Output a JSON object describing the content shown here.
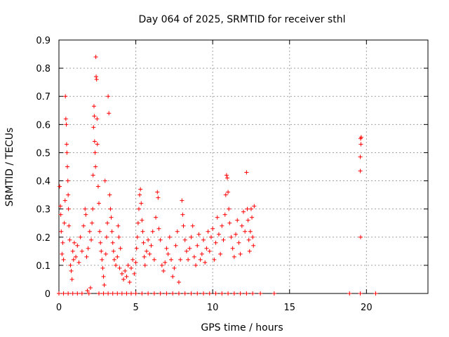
{
  "chart_data": {
    "type": "scatter",
    "title": "Day 064 of 2025, SRMTID for receiver sthl",
    "xlabel": "GPS time / hours",
    "ylabel": "SRMTID / TECUs",
    "xlim": [
      0,
      24
    ],
    "ylim": [
      0,
      0.9
    ],
    "x_ticks": [
      "0",
      "5",
      "10",
      "15",
      "20"
    ],
    "y_ticks": [
      "0",
      "0.1",
      "0.2",
      "0.3",
      "0.4",
      "0.5",
      "0.6",
      "0.7",
      "0.8",
      "0.9"
    ],
    "grid": true,
    "marker": "+",
    "color": "#ff0000",
    "series": [
      {
        "name": "SRMTID",
        "points": [
          [
            0.05,
            0.38
          ],
          [
            0.1,
            0.31
          ],
          [
            0.12,
            0.28
          ],
          [
            0.15,
            0.22
          ],
          [
            0.2,
            0.14
          ],
          [
            0.25,
            0.18
          ],
          [
            0.3,
            0.12
          ],
          [
            0.35,
            0.25
          ],
          [
            0.4,
            0.33
          ],
          [
            0.42,
            0.7
          ],
          [
            0.45,
            0.62
          ],
          [
            0.48,
            0.6
          ],
          [
            0.5,
            0.53
          ],
          [
            0.52,
            0.5
          ],
          [
            0.55,
            0.45
          ],
          [
            0.58,
            0.4
          ],
          [
            0.6,
            0.35
          ],
          [
            0.62,
            0.3
          ],
          [
            0.65,
            0.24
          ],
          [
            0.7,
            0.19
          ],
          [
            0.75,
            0.1
          ],
          [
            0.8,
            0.08
          ],
          [
            0.85,
            0.05
          ],
          [
            0.9,
            0.15
          ],
          [
            0.95,
            0.12
          ],
          [
            1.0,
            0.18
          ],
          [
            1.1,
            0.13
          ],
          [
            1.2,
            0.17
          ],
          [
            1.3,
            0.11
          ],
          [
            1.4,
            0.2
          ],
          [
            1.5,
            0.15
          ],
          [
            1.6,
            0.24
          ],
          [
            1.7,
            0.3
          ],
          [
            1.75,
            0.28
          ],
          [
            1.8,
            0.13
          ],
          [
            1.85,
            0.01
          ],
          [
            1.9,
            0.16
          ],
          [
            1.95,
            0.0
          ],
          [
            2.0,
            0.22
          ],
          [
            2.05,
            0.02
          ],
          [
            2.1,
            0.19
          ],
          [
            2.15,
            0.25
          ],
          [
            2.2,
            0.3
          ],
          [
            2.22,
            0.42
          ],
          [
            2.25,
            0.59
          ],
          [
            2.28,
            0.665
          ],
          [
            2.3,
            0.63
          ],
          [
            2.32,
            0.54
          ],
          [
            2.35,
            0.5
          ],
          [
            2.38,
            0.45
          ],
          [
            2.4,
            0.84
          ],
          [
            2.42,
            0.77
          ],
          [
            2.45,
            0.76
          ],
          [
            2.48,
            0.62
          ],
          [
            2.5,
            0.53
          ],
          [
            2.55,
            0.38
          ],
          [
            2.6,
            0.32
          ],
          [
            2.65,
            0.22
          ],
          [
            2.7,
            0.18
          ],
          [
            2.75,
            0.15
          ],
          [
            2.8,
            0.12
          ],
          [
            2.85,
            0.09
          ],
          [
            2.9,
            0.06
          ],
          [
            2.95,
            0.03
          ],
          [
            3.0,
            0.4
          ],
          [
            3.05,
            0.14
          ],
          [
            3.1,
            0.2
          ],
          [
            3.15,
            0.25
          ],
          [
            3.2,
            0.7
          ],
          [
            3.25,
            0.64
          ],
          [
            3.3,
            0.35
          ],
          [
            3.35,
            0.3
          ],
          [
            3.4,
            0.27
          ],
          [
            3.45,
            0.22
          ],
          [
            3.5,
            0.18
          ],
          [
            3.55,
            0.15
          ],
          [
            3.6,
            0.12
          ],
          [
            3.7,
            0.1
          ],
          [
            3.8,
            0.13
          ],
          [
            3.85,
            0.24
          ],
          [
            3.9,
            0.2
          ],
          [
            3.95,
            0.09
          ],
          [
            4.0,
            0.16
          ],
          [
            4.1,
            0.07
          ],
          [
            4.2,
            0.05
          ],
          [
            4.3,
            0.08
          ],
          [
            4.4,
            0.06
          ],
          [
            4.5,
            0.1
          ],
          [
            4.6,
            0.04
          ],
          [
            4.7,
            0.09
          ],
          [
            4.8,
            0.12
          ],
          [
            4.9,
            0.07
          ],
          [
            5.0,
            0.11
          ],
          [
            5.05,
            0.16
          ],
          [
            5.1,
            0.2
          ],
          [
            5.15,
            0.25
          ],
          [
            5.2,
            0.3
          ],
          [
            5.25,
            0.35
          ],
          [
            5.3,
            0.37
          ],
          [
            5.35,
            0.32
          ],
          [
            5.4,
            0.26
          ],
          [
            5.45,
            0.22
          ],
          [
            5.5,
            0.18
          ],
          [
            5.55,
            0.13
          ],
          [
            5.6,
            0.1
          ],
          [
            5.7,
            0.15
          ],
          [
            5.8,
            0.19
          ],
          [
            5.9,
            0.14
          ],
          [
            6.0,
            0.17
          ],
          [
            6.1,
            0.22
          ],
          [
            6.2,
            0.12
          ],
          [
            6.3,
            0.27
          ],
          [
            6.4,
            0.36
          ],
          [
            6.45,
            0.34
          ],
          [
            6.5,
            0.23
          ],
          [
            6.6,
            0.19
          ],
          [
            6.7,
            0.1
          ],
          [
            6.8,
            0.08
          ],
          [
            6.9,
            0.11
          ],
          [
            7.0,
            0.16
          ],
          [
            7.1,
            0.14
          ],
          [
            7.2,
            0.2
          ],
          [
            7.3,
            0.12
          ],
          [
            7.4,
            0.06
          ],
          [
            7.5,
            0.09
          ],
          [
            7.6,
            0.17
          ],
          [
            7.7,
            0.22
          ],
          [
            7.8,
            0.04
          ],
          [
            7.9,
            0.12
          ],
          [
            8.0,
            0.33
          ],
          [
            8.05,
            0.28
          ],
          [
            8.1,
            0.24
          ],
          [
            8.2,
            0.19
          ],
          [
            8.3,
            0.15
          ],
          [
            8.4,
            0.12
          ],
          [
            8.5,
            0.16
          ],
          [
            8.6,
            0.2
          ],
          [
            8.7,
            0.24
          ],
          [
            8.8,
            0.13
          ],
          [
            8.9,
            0.1
          ],
          [
            9.0,
            0.17
          ],
          [
            9.1,
            0.21
          ],
          [
            9.2,
            0.12
          ],
          [
            9.3,
            0.14
          ],
          [
            9.4,
            0.19
          ],
          [
            9.5,
            0.11
          ],
          [
            9.6,
            0.16
          ],
          [
            9.7,
            0.22
          ],
          [
            9.8,
            0.15
          ],
          [
            9.9,
            0.2
          ],
          [
            10.0,
            0.23
          ],
          [
            10.1,
            0.12
          ],
          [
            10.2,
            0.18
          ],
          [
            10.3,
            0.27
          ],
          [
            10.4,
            0.21
          ],
          [
            10.5,
            0.14
          ],
          [
            10.6,
            0.24
          ],
          [
            10.7,
            0.19
          ],
          [
            10.8,
            0.28
          ],
          [
            10.85,
            0.35
          ],
          [
            10.9,
            0.42
          ],
          [
            10.95,
            0.41
          ],
          [
            11.0,
            0.36
          ],
          [
            11.05,
            0.3
          ],
          [
            11.1,
            0.25
          ],
          [
            11.2,
            0.2
          ],
          [
            11.3,
            0.16
          ],
          [
            11.4,
            0.13
          ],
          [
            11.5,
            0.21
          ],
          [
            11.6,
            0.26
          ],
          [
            11.7,
            0.18
          ],
          [
            11.8,
            0.14
          ],
          [
            11.9,
            0.24
          ],
          [
            12.0,
            0.29
          ],
          [
            12.1,
            0.22
          ],
          [
            12.2,
            0.43
          ],
          [
            12.25,
            0.3
          ],
          [
            12.3,
            0.26
          ],
          [
            12.35,
            0.19
          ],
          [
            12.4,
            0.15
          ],
          [
            12.45,
            0.22
          ],
          [
            12.5,
            0.3
          ],
          [
            12.55,
            0.27
          ],
          [
            12.6,
            0.2
          ],
          [
            12.65,
            0.17
          ],
          [
            12.7,
            0.31
          ],
          [
            0.0,
            0.0
          ],
          [
            0.3,
            0.0
          ],
          [
            0.6,
            0.0
          ],
          [
            0.9,
            0.0
          ],
          [
            1.2,
            0.0
          ],
          [
            1.5,
            0.0
          ],
          [
            2.6,
            0.0
          ],
          [
            2.9,
            0.0
          ],
          [
            3.2,
            0.0
          ],
          [
            3.5,
            0.0
          ],
          [
            3.8,
            0.0
          ],
          [
            4.1,
            0.0
          ],
          [
            4.4,
            0.0
          ],
          [
            4.7,
            0.0
          ],
          [
            5.0,
            0.0
          ],
          [
            5.4,
            0.0
          ],
          [
            5.8,
            0.0
          ],
          [
            6.2,
            0.0
          ],
          [
            6.6,
            0.0
          ],
          [
            7.0,
            0.0
          ],
          [
            7.4,
            0.0
          ],
          [
            7.8,
            0.0
          ],
          [
            8.2,
            0.0
          ],
          [
            8.6,
            0.0
          ],
          [
            9.0,
            0.0
          ],
          [
            9.4,
            0.0
          ],
          [
            9.8,
            0.0
          ],
          [
            10.2,
            0.0
          ],
          [
            10.6,
            0.0
          ],
          [
            11.0,
            0.0
          ],
          [
            11.4,
            0.0
          ],
          [
            11.8,
            0.0
          ],
          [
            12.2,
            0.0
          ],
          [
            12.6,
            0.0
          ],
          [
            13.1,
            0.0
          ],
          [
            14.0,
            0.0
          ],
          [
            18.9,
            0.0
          ],
          [
            19.6,
            0.0
          ],
          [
            20.6,
            0.0
          ],
          [
            19.62,
            0.55
          ],
          [
            19.64,
            0.53
          ],
          [
            19.66,
            0.555
          ],
          [
            19.6,
            0.485
          ],
          [
            19.6,
            0.435
          ],
          [
            19.62,
            0.2
          ]
        ]
      }
    ]
  }
}
